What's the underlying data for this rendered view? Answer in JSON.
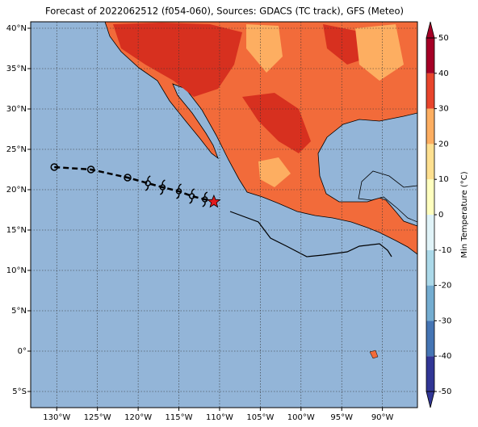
{
  "map": {
    "title": "Forecast of 2022062512 (f054-060), Sources: GDACS (TC track), GFS (Meteo)",
    "xlim": [
      -133.2,
      -85.7
    ],
    "ylim": [
      -7,
      40.8
    ],
    "xticks": [
      {
        "value": -130,
        "label": "130°W"
      },
      {
        "value": -125,
        "label": "125°W"
      },
      {
        "value": -120,
        "label": "120°W"
      },
      {
        "value": -115,
        "label": "115°W"
      },
      {
        "value": -110,
        "label": "110°W"
      },
      {
        "value": -105,
        "label": "105°W"
      },
      {
        "value": -100,
        "label": "100°W"
      },
      {
        "value": -95,
        "label": "95°W"
      },
      {
        "value": -90,
        "label": "90°W"
      }
    ],
    "yticks": [
      {
        "value": -5,
        "label": "5°S"
      },
      {
        "value": 0,
        "label": "0°"
      },
      {
        "value": 5,
        "label": "5°N"
      },
      {
        "value": 10,
        "label": "10°N"
      },
      {
        "value": 15,
        "label": "15°N"
      },
      {
        "value": 20,
        "label": "20°N"
      },
      {
        "value": 25,
        "label": "25°N"
      },
      {
        "value": 30,
        "label": "30°N"
      },
      {
        "value": 35,
        "label": "35°N"
      },
      {
        "value": 40,
        "label": "40°N"
      }
    ],
    "ocean_color": "#93b5d8",
    "track": {
      "lon": [
        -130.3,
        -125.8,
        -121.3,
        -118.8,
        -117.0,
        -115.0,
        -113.4,
        -111.8,
        -110.7
      ],
      "lat": [
        22.8,
        22.5,
        21.5,
        20.8,
        20.3,
        19.8,
        19.2,
        18.8,
        18.5
      ],
      "marker": [
        "circle",
        "circle",
        "circle",
        "storm",
        "storm",
        "storm",
        "storm",
        "storm",
        "star"
      ]
    },
    "colorbar": {
      "label": "Min Temperature (°C)",
      "lim": [
        -50,
        50
      ],
      "ticks": [
        -50,
        -40,
        -30,
        -20,
        -10,
        0,
        10,
        20,
        30,
        40,
        50
      ],
      "colors": [
        "#313695",
        "#4575b4",
        "#74add1",
        "#abd9e9",
        "#e0f3f8",
        "#ffffbf",
        "#fee090",
        "#fdae61",
        "#e8452c",
        "#a50026"
      ]
    }
  }
}
